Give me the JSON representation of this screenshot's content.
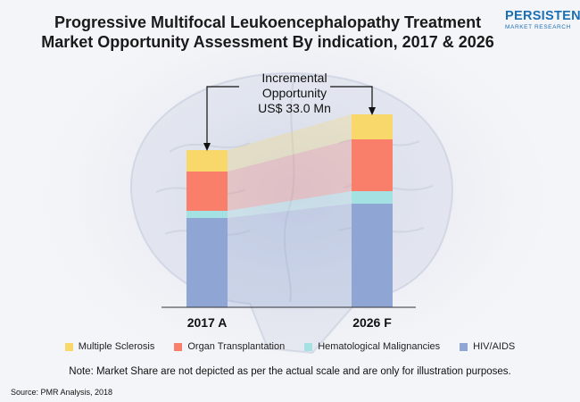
{
  "title_line1": "Progressive Multifocal Leukoencephalopathy Treatment",
  "title_line2": "Market Opportunity Assessment By indication, 2017 & 2026",
  "logo": {
    "main": "PERSISTENCE",
    "sub": "MARKET RESEARCH"
  },
  "annotation": {
    "line1": "Incremental",
    "line2": "Opportunity",
    "line3": "US$ 33.0 Mn"
  },
  "note": "Note: Market Share are not depicted as per the actual scale and are only for illustration purposes.",
  "source": "Source: PMR Analysis, 2018",
  "chart_data": {
    "type": "bar",
    "stacked": true,
    "categories": [
      "2017 A",
      "2026 F"
    ],
    "series": [
      {
        "name": "HIV/AIDS",
        "color": "#8fa6d4",
        "values": [
          100,
          116
        ]
      },
      {
        "name": "Hematological Malignancies",
        "color": "#a4e1e3",
        "values": [
          8,
          14
        ]
      },
      {
        "name": "Organ Transplantation",
        "color": "#f97f6b",
        "values": [
          44,
          58
        ]
      },
      {
        "name": "Multiple Sclerosis",
        "color": "#f8d86a",
        "values": [
          24,
          28
        ]
      }
    ],
    "legend_order": [
      "Multiple Sclerosis",
      "Organ Transplantation",
      "Hematological Malignancies",
      "HIV/AIDS"
    ],
    "ylim": [
      0,
      216
    ],
    "axes_visible": false,
    "legend_position": "bottom"
  }
}
